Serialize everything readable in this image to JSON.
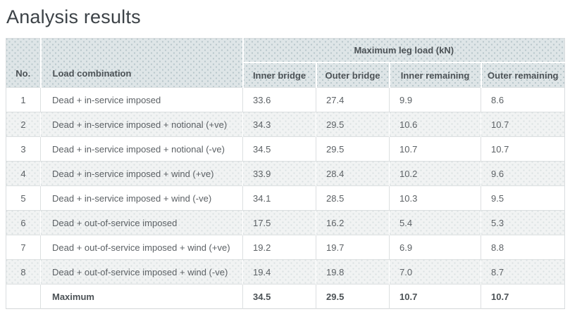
{
  "page": {
    "title": "Analysis results"
  },
  "table": {
    "group_header": "Maximum leg load (kN)",
    "headers": {
      "no": "No.",
      "load_combination": "Load combination",
      "sub": [
        "Inner bridge",
        "Outer bridge",
        "Inner remaining",
        "Outer remaining"
      ]
    },
    "rows": [
      {
        "no": "1",
        "combination": "Dead + in-service imposed",
        "values": [
          "33.6",
          "27.4",
          "9.9",
          "8.6"
        ]
      },
      {
        "no": "2",
        "combination": "Dead + in-service imposed + notional (+ve)",
        "values": [
          "34.3",
          "29.5",
          "10.6",
          "10.7"
        ]
      },
      {
        "no": "3",
        "combination": "Dead + in-service imposed + notional (-ve)",
        "values": [
          "34.5",
          "29.5",
          "10.7",
          "10.7"
        ]
      },
      {
        "no": "4",
        "combination": "Dead + in-service imposed + wind (+ve)",
        "values": [
          "33.9",
          "28.4",
          "10.2",
          "9.6"
        ]
      },
      {
        "no": "5",
        "combination": "Dead + in-service imposed + wind (-ve)",
        "values": [
          "34.1",
          "28.5",
          "10.3",
          "9.5"
        ]
      },
      {
        "no": "6",
        "combination": "Dead + out-of-service imposed",
        "values": [
          "17.5",
          "16.2",
          "5.4",
          "5.3"
        ]
      },
      {
        "no": "7",
        "combination": "Dead + out-of-service imposed + wind (+ve)",
        "values": [
          "19.2",
          "19.7",
          "6.9",
          "8.8"
        ]
      },
      {
        "no": "8",
        "combination": "Dead + out-of-service imposed + wind (-ve)",
        "values": [
          "19.4",
          "19.8",
          "7.0",
          "8.7"
        ]
      }
    ],
    "footer": {
      "label": "Maximum",
      "values": [
        "34.5",
        "29.5",
        "10.7",
        "10.7"
      ]
    }
  },
  "colors": {
    "header_bg": "#dee5e7",
    "stripe_bg": "#f1f3f3",
    "border": "#dcdfe0",
    "header_text": "#4c5256",
    "body_text": "#5c6165",
    "title_text": "#3c4247"
  }
}
